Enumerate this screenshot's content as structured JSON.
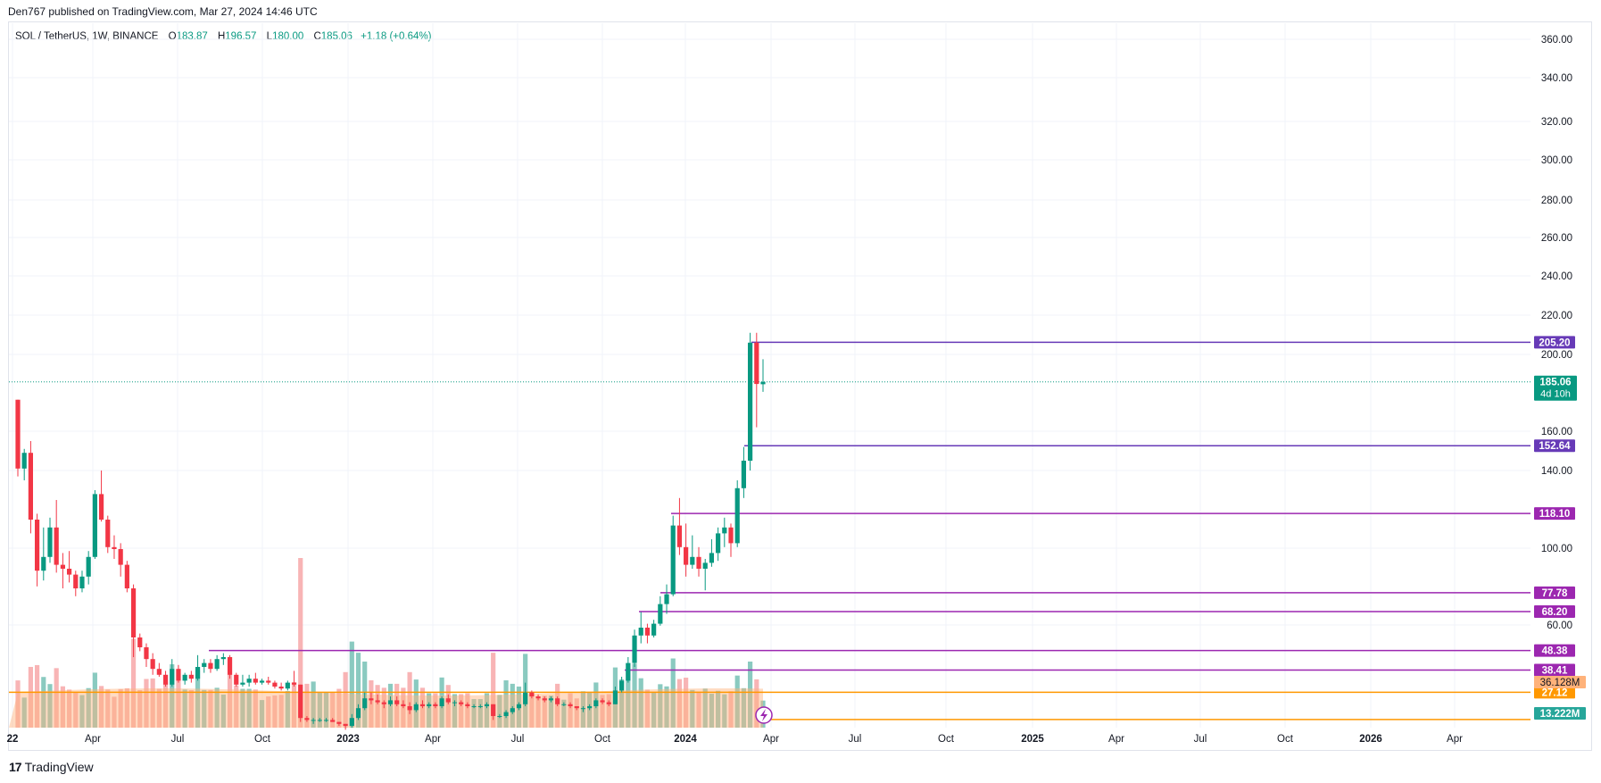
{
  "publisher_line": "Den767 published on TradingView.com, Mar 27, 2024 14:46 UTC",
  "legend": {
    "symbol": "SOL / TetherUS, 1W, BINANCE",
    "open_label": "O",
    "open": "183.87",
    "high_label": "H",
    "high": "196.57",
    "low_label": "L",
    "low": "180.00",
    "close_label": "C",
    "close": "185.06",
    "change": "+1.18 (+0.64%)"
  },
  "footer": {
    "brand": "TradingView",
    "logo_mark": "17"
  },
  "colors": {
    "up": "#089981",
    "down": "#f23645",
    "level_purple": "#7b1fa2",
    "level_violet": "#673ab7",
    "level_orange": "#ff9800",
    "volume_up": "#76c1b5",
    "volume_down": "#f7a7a8",
    "volume_ma": "#ffb27a"
  },
  "chart_data": {
    "type": "candlestick",
    "y_axis_ticks": [
      "360.00",
      "340.00",
      "320.00",
      "300.00",
      "280.00",
      "260.00",
      "240.00",
      "220.00",
      "200.00",
      "160.00",
      "140.00",
      "100.00",
      "60.00"
    ],
    "x_axis_ticks": [
      "22",
      "Apr",
      "Jul",
      "Oct",
      "2023",
      "Apr",
      "Jul",
      "Oct",
      "2024",
      "Apr",
      "Jul",
      "Oct",
      "2025",
      "Apr",
      "Jul",
      "Oct",
      "2026",
      "Apr"
    ],
    "ohlc": [
      {
        "date": "2022-01-03",
        "o": 176,
        "h": 176,
        "l": 137,
        "c": 141
      },
      {
        "date": "2022-01-10",
        "o": 141,
        "h": 151,
        "l": 135,
        "c": 149
      },
      {
        "date": "2022-01-17",
        "o": 149,
        "h": 155,
        "l": 108,
        "c": 115
      },
      {
        "date": "2022-01-24",
        "o": 115,
        "h": 118,
        "l": 81,
        "c": 89
      },
      {
        "date": "2022-01-31",
        "o": 89,
        "h": 111,
        "l": 84,
        "c": 96
      },
      {
        "date": "2022-02-07",
        "o": 96,
        "h": 116,
        "l": 93,
        "c": 111
      },
      {
        "date": "2022-02-14",
        "o": 111,
        "h": 125,
        "l": 88,
        "c": 92
      },
      {
        "date": "2022-02-21",
        "o": 92,
        "h": 98,
        "l": 80,
        "c": 90
      },
      {
        "date": "2022-02-28",
        "o": 90,
        "h": 99,
        "l": 83,
        "c": 87
      },
      {
        "date": "2022-03-07",
        "o": 87,
        "h": 89,
        "l": 76,
        "c": 80
      },
      {
        "date": "2022-03-14",
        "o": 80,
        "h": 89,
        "l": 78,
        "c": 86
      },
      {
        "date": "2022-03-21",
        "o": 86,
        "h": 99,
        "l": 82,
        "c": 96
      },
      {
        "date": "2022-03-28",
        "o": 96,
        "h": 130,
        "l": 95,
        "c": 128
      },
      {
        "date": "2022-04-04",
        "o": 128,
        "h": 140,
        "l": 114,
        "c": 115
      },
      {
        "date": "2022-04-11",
        "o": 115,
        "h": 117,
        "l": 98,
        "c": 101
      },
      {
        "date": "2022-04-18",
        "o": 101,
        "h": 107,
        "l": 95,
        "c": 100
      },
      {
        "date": "2022-04-25",
        "o": 100,
        "h": 103,
        "l": 86,
        "c": 92
      },
      {
        "date": "2022-05-02",
        "o": 92,
        "h": 94,
        "l": 78,
        "c": 80
      },
      {
        "date": "2022-05-09",
        "o": 80,
        "h": 82,
        "l": 45,
        "c": 55
      },
      {
        "date": "2022-05-16",
        "o": 55,
        "h": 57,
        "l": 48,
        "c": 50
      },
      {
        "date": "2022-05-23",
        "o": 50,
        "h": 52,
        "l": 40,
        "c": 44
      },
      {
        "date": "2022-05-30",
        "o": 44,
        "h": 47,
        "l": 36,
        "c": 39
      },
      {
        "date": "2022-06-06",
        "o": 39,
        "h": 42,
        "l": 35,
        "c": 36
      },
      {
        "date": "2022-06-13",
        "o": 36,
        "h": 38,
        "l": 30,
        "c": 31
      },
      {
        "date": "2022-06-20",
        "o": 31,
        "h": 44,
        "l": 30,
        "c": 39
      },
      {
        "date": "2022-06-27",
        "o": 39,
        "h": 41,
        "l": 32,
        "c": 33
      },
      {
        "date": "2022-07-04",
        "o": 33,
        "h": 37,
        "l": 31,
        "c": 36
      },
      {
        "date": "2022-07-11",
        "o": 36,
        "h": 38,
        "l": 32,
        "c": 34
      },
      {
        "date": "2022-07-18",
        "o": 34,
        "h": 46,
        "l": 33,
        "c": 40
      },
      {
        "date": "2022-07-25",
        "o": 40,
        "h": 44,
        "l": 37,
        "c": 42
      },
      {
        "date": "2022-08-01",
        "o": 42,
        "h": 44,
        "l": 37,
        "c": 39
      },
      {
        "date": "2022-08-08",
        "o": 39,
        "h": 46,
        "l": 38,
        "c": 44
      },
      {
        "date": "2022-08-15",
        "o": 44,
        "h": 47,
        "l": 41,
        "c": 45
      },
      {
        "date": "2022-08-22",
        "o": 45,
        "h": 46,
        "l": 34,
        "c": 36
      },
      {
        "date": "2022-08-29",
        "o": 36,
        "h": 37,
        "l": 30,
        "c": 31
      },
      {
        "date": "2022-09-05",
        "o": 31,
        "h": 36,
        "l": 30,
        "c": 32
      },
      {
        "date": "2022-09-12",
        "o": 32,
        "h": 36,
        "l": 30,
        "c": 34
      },
      {
        "date": "2022-09-19",
        "o": 34,
        "h": 37,
        "l": 31,
        "c": 32
      },
      {
        "date": "2022-09-26",
        "o": 32,
        "h": 34,
        "l": 31,
        "c": 33
      },
      {
        "date": "2022-10-03",
        "o": 33,
        "h": 35,
        "l": 31,
        "c": 32
      },
      {
        "date": "2022-10-10",
        "o": 32,
        "h": 33,
        "l": 29,
        "c": 30
      },
      {
        "date": "2022-10-17",
        "o": 30,
        "h": 32,
        "l": 28,
        "c": 29
      },
      {
        "date": "2022-10-24",
        "o": 29,
        "h": 33,
        "l": 28,
        "c": 32
      },
      {
        "date": "2022-10-31",
        "o": 32,
        "h": 38,
        "l": 30,
        "c": 31
      },
      {
        "date": "2022-11-07",
        "o": 31,
        "h": 31,
        "l": 12,
        "c": 14
      },
      {
        "date": "2022-11-14",
        "o": 14,
        "h": 15,
        "l": 12,
        "c": 13
      },
      {
        "date": "2022-11-21",
        "o": 13,
        "h": 14,
        "l": 11,
        "c": 13
      },
      {
        "date": "2022-11-28",
        "o": 13,
        "h": 14,
        "l": 12,
        "c": 13
      },
      {
        "date": "2022-12-05",
        "o": 13,
        "h": 14,
        "l": 12,
        "c": 13
      },
      {
        "date": "2022-12-12",
        "o": 13,
        "h": 14,
        "l": 12,
        "c": 12
      },
      {
        "date": "2022-12-19",
        "o": 12,
        "h": 12,
        "l": 10,
        "c": 11
      },
      {
        "date": "2022-12-26",
        "o": 11,
        "h": 11,
        "l": 8,
        "c": 10
      },
      {
        "date": "2023-01-02",
        "o": 10,
        "h": 16,
        "l": 9,
        "c": 14
      },
      {
        "date": "2023-01-09",
        "o": 14,
        "h": 21,
        "l": 13,
        "c": 19
      },
      {
        "date": "2023-01-16",
        "o": 19,
        "h": 27,
        "l": 18,
        "c": 24
      },
      {
        "date": "2023-01-23",
        "o": 24,
        "h": 27,
        "l": 21,
        "c": 23
      },
      {
        "date": "2023-01-30",
        "o": 23,
        "h": 26,
        "l": 21,
        "c": 22
      },
      {
        "date": "2023-02-06",
        "o": 22,
        "h": 23,
        "l": 19,
        "c": 21
      },
      {
        "date": "2023-02-13",
        "o": 21,
        "h": 25,
        "l": 20,
        "c": 23
      },
      {
        "date": "2023-02-20",
        "o": 23,
        "h": 25,
        "l": 20,
        "c": 21
      },
      {
        "date": "2023-02-27",
        "o": 21,
        "h": 23,
        "l": 19,
        "c": 20
      },
      {
        "date": "2023-03-06",
        "o": 20,
        "h": 22,
        "l": 16,
        "c": 18
      },
      {
        "date": "2023-03-13",
        "o": 18,
        "h": 22,
        "l": 17,
        "c": 21
      },
      {
        "date": "2023-03-20",
        "o": 21,
        "h": 23,
        "l": 19,
        "c": 20
      },
      {
        "date": "2023-03-27",
        "o": 20,
        "h": 22,
        "l": 19,
        "c": 21
      },
      {
        "date": "2023-04-03",
        "o": 21,
        "h": 22,
        "l": 19,
        "c": 20
      },
      {
        "date": "2023-04-10",
        "o": 20,
        "h": 25,
        "l": 19,
        "c": 24
      },
      {
        "date": "2023-04-17",
        "o": 24,
        "h": 26,
        "l": 21,
        "c": 22
      },
      {
        "date": "2023-04-24",
        "o": 22,
        "h": 23,
        "l": 20,
        "c": 22
      },
      {
        "date": "2023-05-01",
        "o": 22,
        "h": 23,
        "l": 20,
        "c": 21
      },
      {
        "date": "2023-05-08",
        "o": 21,
        "h": 22,
        "l": 19,
        "c": 20
      },
      {
        "date": "2023-05-15",
        "o": 20,
        "h": 21,
        "l": 19,
        "c": 20
      },
      {
        "date": "2023-05-22",
        "o": 20,
        "h": 21,
        "l": 19,
        "c": 20
      },
      {
        "date": "2023-05-29",
        "o": 20,
        "h": 22,
        "l": 19,
        "c": 21
      },
      {
        "date": "2023-06-05",
        "o": 21,
        "h": 21,
        "l": 13,
        "c": 15
      },
      {
        "date": "2023-06-12",
        "o": 15,
        "h": 16,
        "l": 14,
        "c": 15
      },
      {
        "date": "2023-06-19",
        "o": 15,
        "h": 18,
        "l": 14,
        "c": 17
      },
      {
        "date": "2023-06-26",
        "o": 17,
        "h": 20,
        "l": 16,
        "c": 19
      },
      {
        "date": "2023-07-03",
        "o": 19,
        "h": 22,
        "l": 18,
        "c": 21
      },
      {
        "date": "2023-07-10",
        "o": 21,
        "h": 32,
        "l": 20,
        "c": 27
      },
      {
        "date": "2023-07-17",
        "o": 27,
        "h": 28,
        "l": 24,
        "c": 25
      },
      {
        "date": "2023-07-24",
        "o": 25,
        "h": 26,
        "l": 23,
        "c": 24
      },
      {
        "date": "2023-07-31",
        "o": 24,
        "h": 25,
        "l": 22,
        "c": 23
      },
      {
        "date": "2023-08-07",
        "o": 23,
        "h": 25,
        "l": 22,
        "c": 24
      },
      {
        "date": "2023-08-14",
        "o": 24,
        "h": 25,
        "l": 20,
        "c": 21
      },
      {
        "date": "2023-08-21",
        "o": 21,
        "h": 22,
        "l": 20,
        "c": 21
      },
      {
        "date": "2023-08-28",
        "o": 21,
        "h": 22,
        "l": 19,
        "c": 20
      },
      {
        "date": "2023-09-04",
        "o": 20,
        "h": 20,
        "l": 18,
        "c": 19
      },
      {
        "date": "2023-09-11",
        "o": 19,
        "h": 20,
        "l": 17,
        "c": 19
      },
      {
        "date": "2023-09-18",
        "o": 19,
        "h": 21,
        "l": 18,
        "c": 20
      },
      {
        "date": "2023-09-25",
        "o": 20,
        "h": 24,
        "l": 19,
        "c": 23
      },
      {
        "date": "2023-10-02",
        "o": 23,
        "h": 24,
        "l": 21,
        "c": 22
      },
      {
        "date": "2023-10-09",
        "o": 22,
        "h": 23,
        "l": 20,
        "c": 21
      },
      {
        "date": "2023-10-16",
        "o": 21,
        "h": 30,
        "l": 21,
        "c": 28
      },
      {
        "date": "2023-10-23",
        "o": 28,
        "h": 35,
        "l": 27,
        "c": 33
      },
      {
        "date": "2023-10-30",
        "o": 33,
        "h": 45,
        "l": 32,
        "c": 42
      },
      {
        "date": "2023-11-06",
        "o": 42,
        "h": 59,
        "l": 40,
        "c": 56
      },
      {
        "date": "2023-11-13",
        "o": 56,
        "h": 68,
        "l": 52,
        "c": 60
      },
      {
        "date": "2023-11-20",
        "o": 60,
        "h": 62,
        "l": 52,
        "c": 56
      },
      {
        "date": "2023-11-27",
        "o": 56,
        "h": 64,
        "l": 55,
        "c": 62
      },
      {
        "date": "2023-12-04",
        "o": 62,
        "h": 76,
        "l": 61,
        "c": 72
      },
      {
        "date": "2023-12-11",
        "o": 72,
        "h": 82,
        "l": 67,
        "c": 77
      },
      {
        "date": "2023-12-18",
        "o": 77,
        "h": 117,
        "l": 76,
        "c": 112
      },
      {
        "date": "2023-12-25",
        "o": 112,
        "h": 126,
        "l": 97,
        "c": 101
      },
      {
        "date": "2024-01-01",
        "o": 101,
        "h": 113,
        "l": 86,
        "c": 92
      },
      {
        "date": "2024-01-08",
        "o": 92,
        "h": 107,
        "l": 90,
        "c": 96
      },
      {
        "date": "2024-01-15",
        "o": 96,
        "h": 101,
        "l": 86,
        "c": 90
      },
      {
        "date": "2024-01-22",
        "o": 90,
        "h": 95,
        "l": 79,
        "c": 93
      },
      {
        "date": "2024-01-29",
        "o": 93,
        "h": 105,
        "l": 91,
        "c": 98
      },
      {
        "date": "2024-02-05",
        "o": 98,
        "h": 111,
        "l": 94,
        "c": 108
      },
      {
        "date": "2024-02-12",
        "o": 108,
        "h": 116,
        "l": 101,
        "c": 111
      },
      {
        "date": "2024-02-19",
        "o": 111,
        "h": 113,
        "l": 96,
        "c": 103
      },
      {
        "date": "2024-02-26",
        "o": 103,
        "h": 135,
        "l": 101,
        "c": 131
      },
      {
        "date": "2024-03-04",
        "o": 131,
        "h": 152,
        "l": 126,
        "c": 145
      },
      {
        "date": "2024-03-11",
        "o": 145,
        "h": 210,
        "l": 140,
        "c": 205
      },
      {
        "date": "2024-03-18",
        "o": 205,
        "h": 210,
        "l": 162,
        "c": 184
      },
      {
        "date": "2024-03-25",
        "o": 183.87,
        "h": 196.57,
        "l": 180.0,
        "c": 185.06
      }
    ],
    "horizontal_levels": [
      {
        "value": 205.2,
        "label": "205.20",
        "color": "#673ab7"
      },
      {
        "value": 152.64,
        "label": "152.64",
        "color": "#673ab7"
      },
      {
        "value": 118.1,
        "label": "118.10",
        "color": "#9c27b0"
      },
      {
        "value": 77.78,
        "label": "77.78",
        "color": "#9c27b0"
      },
      {
        "value": 68.2,
        "label": "68.20",
        "color": "#9c27b0"
      },
      {
        "value": 48.38,
        "label": "48.38",
        "color": "#9c27b0"
      },
      {
        "value": 38.41,
        "label": "38.41",
        "color": "#9c27b0"
      },
      {
        "value": 27.12,
        "label": "27.12",
        "color": "#ff9800"
      },
      {
        "value": 13.22,
        "label": "",
        "color": "#ff9800"
      }
    ],
    "last_price": {
      "value": 185.06,
      "label": "185.06",
      "countdown": "4d 10h"
    },
    "volume_labels": {
      "ma": "36.128M",
      "current": "13.222M"
    },
    "ylim": [
      0,
      370
    ],
    "grid": true
  }
}
